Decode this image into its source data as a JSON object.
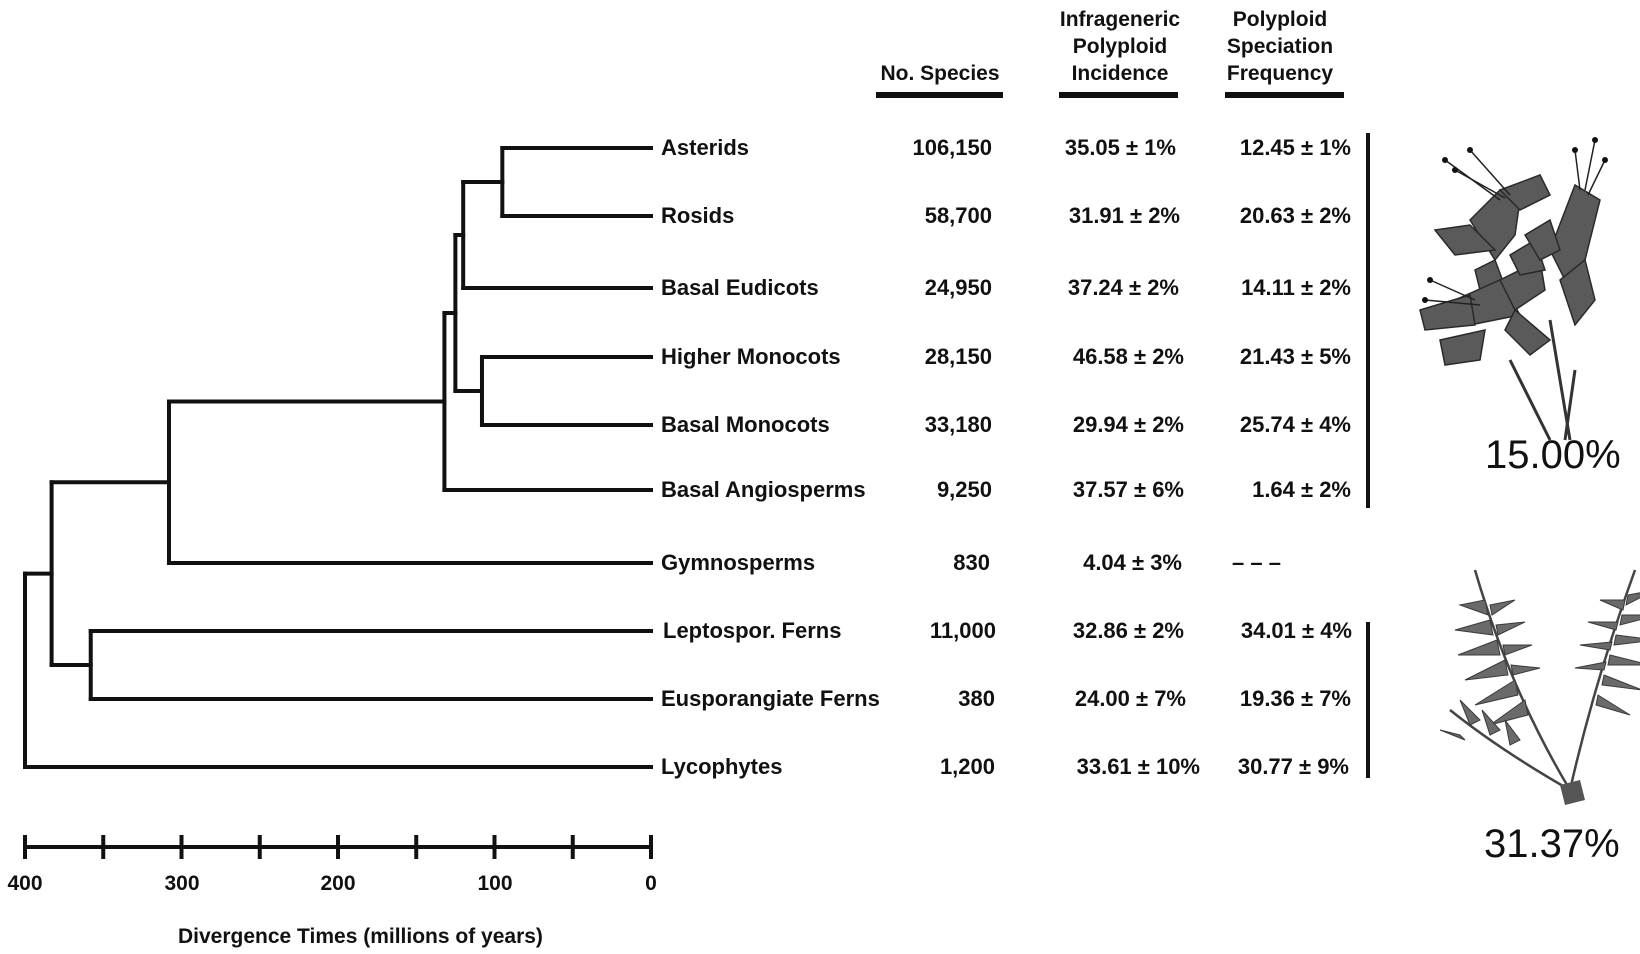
{
  "headers": {
    "species": "No. Species",
    "incidence": [
      "Infrageneric",
      "Polyploid",
      "Incidence"
    ],
    "frequency": [
      "Polyploid",
      "Speciation",
      "Frequency"
    ]
  },
  "taxa": [
    {
      "name": "Asterids",
      "species": "106,150",
      "incidence": "35.05 ± 1%",
      "frequency": "12.45 ± 1%"
    },
    {
      "name": "Rosids",
      "species": "58,700",
      "incidence": "31.91 ± 2%",
      "frequency": "20.63 ± 2%"
    },
    {
      "name": "Basal Eudicots",
      "species": "24,950",
      "incidence": "37.24 ± 2%",
      "frequency": "14.11 ± 2%"
    },
    {
      "name": "Higher Monocots",
      "species": "28,150",
      "incidence": "46.58 ± 2%",
      "frequency": "21.43 ± 5%"
    },
    {
      "name": "Basal Monocots",
      "species": "33,180",
      "incidence": "29.94 ± 2%",
      "frequency": "25.74 ± 4%"
    },
    {
      "name": "Basal Angiosperms",
      "species": "9,250",
      "incidence": "37.57 ± 6%",
      "frequency": "1.64 ± 2%"
    },
    {
      "name": "Gymnosperms",
      "species": "830",
      "incidence": "4.04 ± 3%",
      "frequency": "– – –"
    },
    {
      "name": "Leptospor. Ferns",
      "species": "11,000",
      "incidence": "32.86 ± 2%",
      "frequency": "34.01 ± 4%"
    },
    {
      "name": "Eusporangiate Ferns",
      "species": "380",
      "incidence": "24.00 ± 7%",
      "frequency": "19.36 ± 7%"
    },
    {
      "name": "Lycophytes",
      "species": "1,200",
      "incidence": "33.61 ± 10%",
      "frequency": "30.77 ± 9%"
    }
  ],
  "group_totals": {
    "angiosperms": "15.00%",
    "ferns": "31.37%"
  },
  "axis": {
    "title": "Divergence Times (millions of years)",
    "ticks": [
      "400",
      "300",
      "200",
      "100",
      "0"
    ],
    "max": 400,
    "min": 0
  },
  "tree": {
    "branch_times_mya": {
      "asterids_rosids": 95,
      "eudicots": 120,
      "higher_basal_monocots": 108,
      "monocots_eudicots": 125,
      "angiosperms": 132,
      "seed_plants": 308,
      "ferns": 358,
      "euphyllophytes": 383,
      "vascular_plants": 400
    }
  },
  "illustrations": {
    "angiosperm": "lily-flower-illustration",
    "fern": "fern-frond-illustration"
  }
}
